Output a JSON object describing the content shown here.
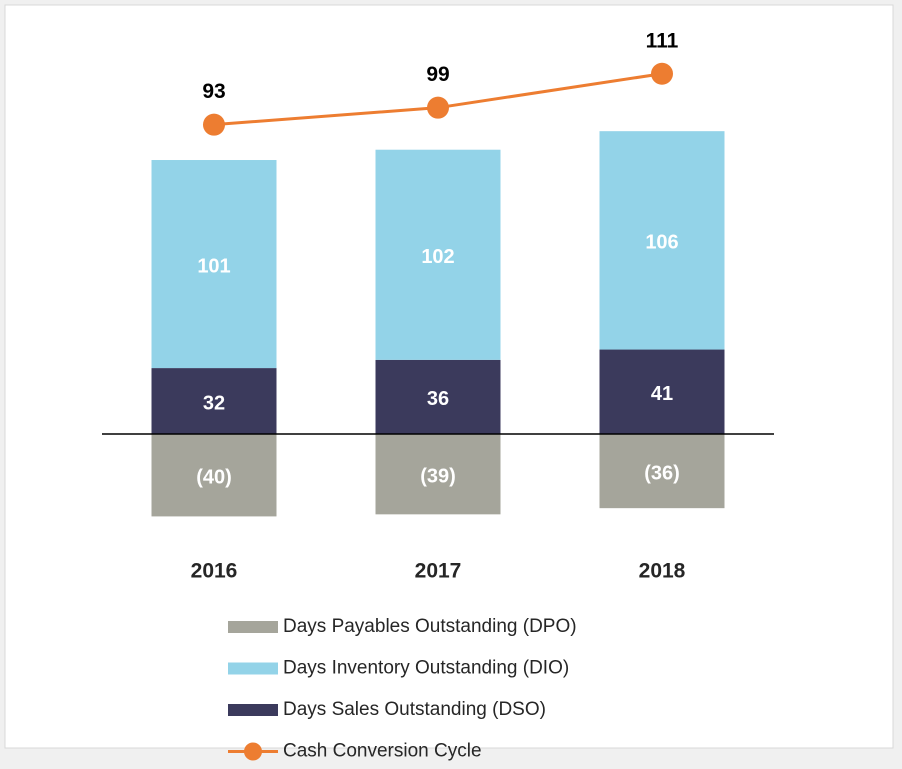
{
  "chart_data": {
    "type": "bar",
    "stacked": true,
    "categories": [
      "2016",
      "2017",
      "2018"
    ],
    "series": [
      {
        "name": "Days Payables Outstanding (DPO)",
        "color": "#a5a59b",
        "values": [
          -40,
          -39,
          -36
        ],
        "value_labels": [
          "(40)",
          "(39)",
          "(36)"
        ]
      },
      {
        "name": "Days Inventory Outstanding (DIO)",
        "color": "#93d3e8",
        "values": [
          101,
          102,
          106
        ]
      },
      {
        "name": "Days Sales Outstanding (DSO)",
        "color": "#3b3a5c",
        "values": [
          32,
          36,
          41
        ]
      },
      {
        "name": "Cash Conversion Cycle",
        "color": "#ed7d31",
        "type": "line",
        "axis": "y2",
        "values": [
          93,
          99,
          111
        ]
      }
    ],
    "ylim": [
      -60,
      190
    ],
    "y2lim": [
      -60,
      122
    ],
    "legend": "bottom"
  }
}
